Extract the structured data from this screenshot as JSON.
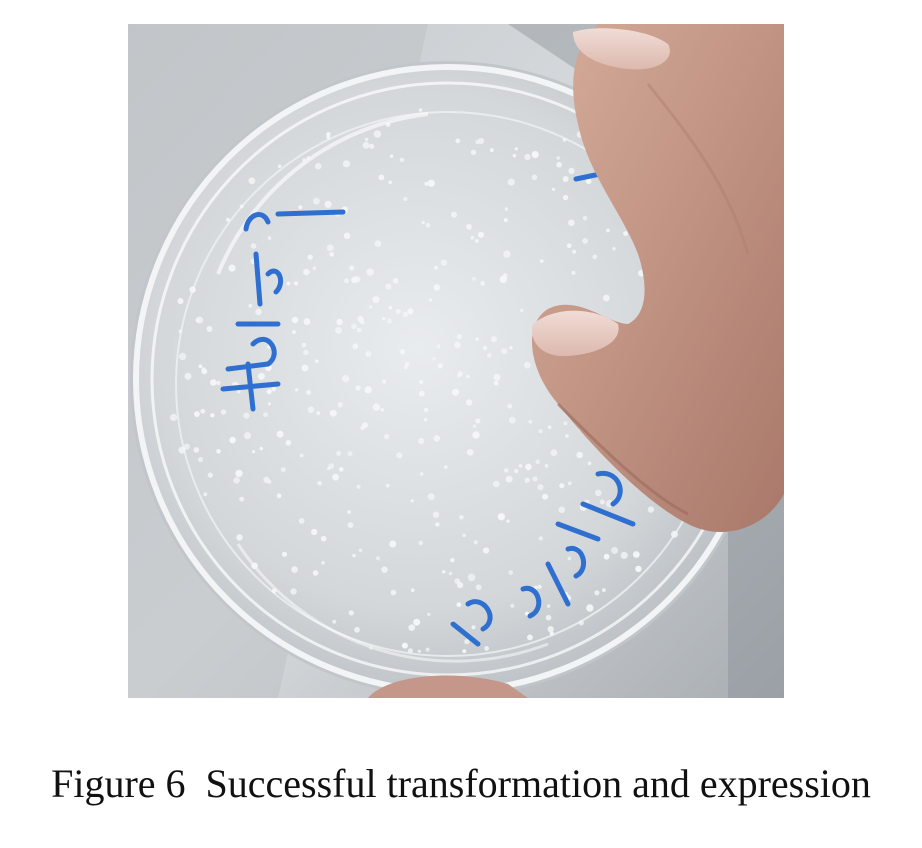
{
  "figure": {
    "caption": "Figure 6  Successful transformation and expression"
  },
  "photo": {
    "subject": "petri-dish-with-colonies",
    "colors": {
      "marker_ink": "#2f6fd0",
      "background_light": "#d9dcdf",
      "background_dark": "#8e949a",
      "skin": "#c99a86",
      "colony": "#f4f6f7"
    }
  }
}
